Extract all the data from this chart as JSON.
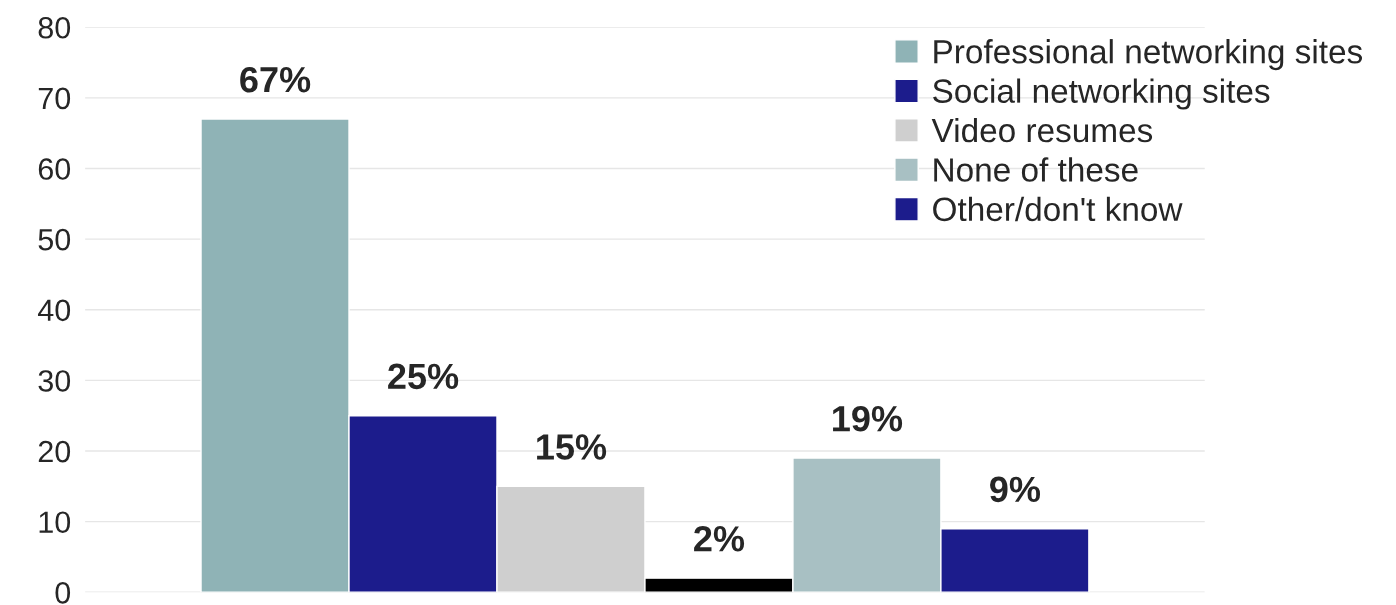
{
  "chart_data": {
    "type": "bar",
    "categories": [
      null
    ],
    "series": [
      {
        "name": "Professional networking sites",
        "color": "#8fb3b6",
        "values": [
          67
        ],
        "value_labels": [
          "67%"
        ]
      },
      {
        "name": "Social networking sites",
        "color": "#1c1c8c",
        "values": [
          25
        ],
        "value_labels": [
          "25%"
        ]
      },
      {
        "name": "Video resumes",
        "color": "#cfcfcf",
        "values": [
          15
        ],
        "value_labels": [
          "15%"
        ]
      },
      {
        "color": "#000000",
        "values": [
          2
        ],
        "value_labels": [
          "2%"
        ]
      },
      {
        "name": "None of these",
        "color": "#a8c0c3",
        "values": [
          19
        ],
        "value_labels": [
          "19%"
        ]
      },
      {
        "name": "Other/don't know",
        "color": "#1c1c8c",
        "values": [
          9
        ],
        "value_labels": [
          "9%"
        ]
      }
    ],
    "ylim": [
      0,
      80
    ],
    "yticks": [
      0,
      10,
      20,
      30,
      40,
      50,
      60,
      70,
      80
    ],
    "grid": "y",
    "legend": "top right"
  }
}
